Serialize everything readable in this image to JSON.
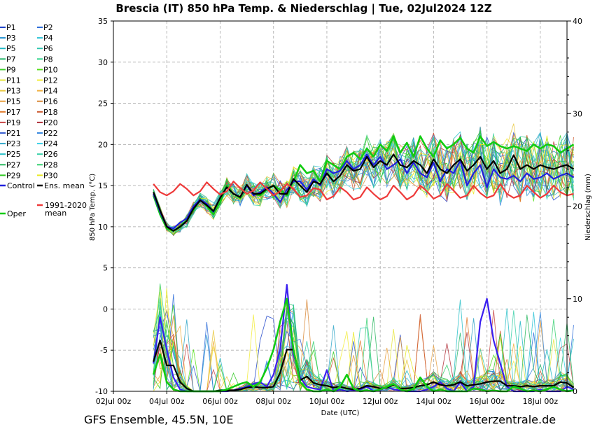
{
  "title": "Brescia  (IT)  850 hPa Temp. & Niederschlag | Tue, 02Jul2024 12Z",
  "footer_left": "GFS Ensemble, 45.5N, 10E",
  "footer_right": "Wetterzentrale.de",
  "chart_data": {
    "type": "line",
    "title": "Brescia  (IT)  850 hPa Temp. & Niederschlag | Tue, 02Jul2024 12Z",
    "xlabel": "Date (UTC)",
    "ylabel": "850 hPa Temp. (°C)",
    "y2label": "Niederschlag (mm)",
    "x_ticks": [
      "02Jul 00z",
      "04Jul 00z",
      "06Jul 00z",
      "08Jul 00z",
      "10Jul 00z",
      "12Jul 00z",
      "14Jul 00z",
      "16Jul 00z",
      "18Jul 00z"
    ],
    "x_range_hours": [
      0,
      408
    ],
    "x_start_hour": 36,
    "step_hours": 6,
    "ylim": [
      -10,
      35
    ],
    "y_ticks": [
      -10,
      -5,
      0,
      5,
      10,
      15,
      20,
      25,
      30,
      35
    ],
    "y2lim": [
      0,
      40
    ],
    "y2_ticks": [
      0,
      10,
      20,
      30,
      40
    ],
    "grid": true,
    "legend_position": "left",
    "legend": [
      {
        "name": "P1",
        "color": "#1f44c9"
      },
      {
        "name": "P2",
        "color": "#2f6fd9"
      },
      {
        "name": "P3",
        "color": "#1f8fcf"
      },
      {
        "name": "P4",
        "color": "#2cc2d6"
      },
      {
        "name": "P5",
        "color": "#20b8c4"
      },
      {
        "name": "P6",
        "color": "#30c7b0"
      },
      {
        "name": "P7",
        "color": "#2ab86f"
      },
      {
        "name": "P8",
        "color": "#33d68f"
      },
      {
        "name": "P9",
        "color": "#3ed02a"
      },
      {
        "name": "P10",
        "color": "#55e01a"
      },
      {
        "name": "P11",
        "color": "#e6e640"
      },
      {
        "name": "P12",
        "color": "#f2ec3a"
      },
      {
        "name": "P13",
        "color": "#e8c840"
      },
      {
        "name": "P14",
        "color": "#f0b040"
      },
      {
        "name": "P15",
        "color": "#e8a040"
      },
      {
        "name": "P16",
        "color": "#d98a3a"
      },
      {
        "name": "P17",
        "color": "#e07a2a"
      },
      {
        "name": "P18",
        "color": "#cc5a30"
      },
      {
        "name": "P19",
        "color": "#c84848"
      },
      {
        "name": "P20",
        "color": "#b0303a"
      },
      {
        "name": "P21",
        "color": "#3a5fd0"
      },
      {
        "name": "P22",
        "color": "#3a8ae0"
      },
      {
        "name": "P23",
        "color": "#30a6c8"
      },
      {
        "name": "P24",
        "color": "#38d0e8"
      },
      {
        "name": "P25",
        "color": "#28c0c8"
      },
      {
        "name": "P26",
        "color": "#38d0a8"
      },
      {
        "name": "P27",
        "color": "#2ab860"
      },
      {
        "name": "P28",
        "color": "#36d070"
      },
      {
        "name": "P29",
        "color": "#2ec820"
      },
      {
        "name": "P30",
        "color": "#e8e820"
      },
      {
        "name": "Control",
        "color": "#2020dd"
      },
      {
        "name": "Ens. mean",
        "color": "#000000"
      },
      {
        "name": "Oper",
        "color": "#11cc11"
      },
      {
        "name": "1991-2020 mean",
        "color": "#ee3a3a"
      }
    ],
    "series": [
      {
        "name": "Oper",
        "color": "#11cc11",
        "axis": "temp",
        "values": [
          13.8,
          11.5,
          9.8,
          9.5,
          10.0,
          10.8,
          12.0,
          13.4,
          12.5,
          11.5,
          13.0,
          15.0,
          14.0,
          13.5,
          15.0,
          14.0,
          13.8,
          14.5,
          15.0,
          14.5,
          13.8,
          15.5,
          17.5,
          16.5,
          16.8,
          15.5,
          18.0,
          17.5,
          17.0,
          18.5,
          19.0,
          18.2,
          19.5,
          18.5,
          20.0,
          19.2,
          21.0,
          19.0,
          20.2,
          18.5,
          21.0,
          19.5,
          18.5,
          20.5,
          19.5,
          20.0,
          20.8,
          19.5,
          19.0,
          21.0,
          19.8,
          20.3,
          19.8,
          19.5,
          19.8,
          19.5,
          19.2,
          20.0,
          19.5,
          20.0,
          19.8,
          19.0,
          19.5,
          20.0
        ]
      },
      {
        "name": "Control",
        "color": "#2020dd",
        "axis": "temp",
        "values": [
          14.0,
          11.8,
          10.0,
          9.8,
          10.5,
          11.0,
          12.5,
          13.3,
          12.8,
          11.8,
          13.5,
          14.8,
          14.0,
          13.6,
          15.0,
          13.8,
          14.2,
          14.8,
          14.0,
          13.0,
          14.5,
          15.5,
          15.5,
          14.5,
          15.8,
          15.0,
          17.0,
          16.5,
          16.8,
          18.0,
          17.0,
          17.5,
          18.8,
          17.5,
          18.5,
          17.0,
          17.5,
          18.2,
          16.5,
          17.8,
          16.5,
          16.0,
          17.8,
          15.5,
          17.0,
          16.5,
          18.0,
          15.0,
          16.5,
          17.5,
          14.8,
          17.0,
          16.0,
          15.8,
          16.2,
          15.5,
          16.5,
          15.8,
          16.0,
          16.5,
          15.8,
          16.2,
          16.5,
          16.0
        ]
      },
      {
        "name": "Ens. mean",
        "color": "#000000",
        "axis": "temp",
        "values": [
          14.2,
          12.0,
          10.0,
          9.5,
          10.0,
          10.7,
          12.2,
          13.2,
          12.6,
          11.9,
          13.5,
          14.8,
          14.0,
          13.6,
          15.1,
          14.0,
          14.0,
          14.6,
          15.0,
          14.0,
          14.0,
          15.8,
          15.0,
          14.2,
          15.5,
          15.2,
          16.5,
          15.5,
          16.2,
          17.5,
          16.8,
          17.0,
          18.5,
          17.2,
          18.0,
          17.5,
          18.8,
          17.5,
          17.2,
          18.0,
          17.5,
          16.5,
          18.2,
          17.0,
          16.5,
          17.5,
          18.2,
          16.8,
          17.5,
          18.5,
          17.0,
          18.0,
          16.5,
          17.0,
          18.7,
          17.0,
          17.5,
          17.0,
          17.5,
          17.2,
          17.0,
          17.3,
          17.5,
          17.0
        ]
      },
      {
        "name": "1991-2020 mean",
        "color": "#ee3a3a",
        "axis": "temp",
        "values": [
          15.2,
          14.2,
          13.8,
          14.3,
          15.2,
          14.6,
          13.8,
          14.3,
          15.4,
          14.6,
          13.9,
          14.3,
          15.5,
          14.7,
          14.0,
          14.4,
          15.4,
          14.6,
          13.8,
          14.3,
          15.2,
          14.6,
          13.6,
          13.8,
          14.7,
          14.5,
          13.3,
          13.7,
          14.8,
          14.2,
          13.3,
          13.6,
          14.8,
          14.0,
          13.3,
          13.7,
          15.0,
          14.2,
          13.3,
          13.8,
          15.0,
          14.3,
          13.4,
          13.8,
          15.2,
          14.4,
          13.5,
          13.8,
          15.0,
          14.1,
          13.5,
          13.8,
          15.2,
          14.0,
          13.5,
          13.8,
          15.0,
          14.2,
          13.5,
          14.0,
          15.0,
          14.2,
          13.8,
          14.0
        ]
      },
      {
        "name": "Control",
        "color": "#3a1ff0",
        "axis": "precip",
        "values": [
          3.0,
          8.0,
          4.5,
          1.5,
          0.2,
          0.0,
          0.0,
          0.0,
          0.0,
          0.0,
          0.0,
          0.0,
          0.1,
          0.3,
          0.5,
          0.8,
          1.0,
          0.5,
          1.8,
          4.5,
          11.5,
          4.0,
          1.5,
          0.5,
          0.3,
          0.2,
          2.3,
          0.0,
          0.2,
          0.0,
          0.1,
          0.2,
          0.5,
          0.0,
          0.1,
          0.5,
          0.2,
          0.1,
          0.0,
          0.0,
          0.0,
          0.2,
          0.5,
          1.0,
          0.3,
          0.0,
          1.0,
          0.0,
          0.5,
          7.5,
          10.0,
          5.5,
          3.0,
          0.5,
          0.0,
          0.0,
          0.0,
          0.0,
          0.2,
          0.0,
          0.0,
          0.0,
          0.5,
          0.2
        ]
      },
      {
        "name": "Ens. mean",
        "color": "#000000",
        "axis": "precip",
        "values": [
          3.2,
          5.5,
          2.8,
          2.8,
          1.0,
          0.3,
          0.0,
          0.0,
          0.0,
          0.0,
          0.1,
          0.1,
          0.1,
          0.2,
          0.4,
          0.5,
          0.4,
          0.4,
          0.5,
          2.0,
          4.5,
          4.5,
          1.2,
          1.6,
          0.9,
          0.7,
          0.6,
          0.4,
          0.5,
          0.3,
          0.2,
          0.3,
          0.6,
          0.5,
          0.3,
          0.4,
          0.7,
          0.3,
          0.3,
          0.4,
          0.6,
          0.7,
          1.0,
          0.7,
          0.6,
          0.7,
          1.0,
          0.6,
          0.7,
          0.8,
          1.0,
          1.1,
          1.1,
          0.6,
          0.6,
          0.5,
          0.6,
          0.5,
          0.6,
          0.6,
          0.6,
          1.0,
          0.9,
          0.4
        ]
      },
      {
        "name": "Oper",
        "color": "#11cc11",
        "axis": "precip",
        "values": [
          1.8,
          4.0,
          1.0,
          0.2,
          0.0,
          0.0,
          0.0,
          0.0,
          0.0,
          0.0,
          0.0,
          0.2,
          0.5,
          0.8,
          1.0,
          0.5,
          1.0,
          2.5,
          4.5,
          7.5,
          10.0,
          4.5,
          1.0,
          0.2,
          0.0,
          0.0,
          0.2,
          0.0,
          0.5,
          1.8,
          0.3,
          0.0,
          0.1,
          0.0,
          0.2,
          0.5,
          0.8,
          0.2,
          0.0,
          0.3,
          1.5,
          0.5,
          0.0,
          0.2,
          0.0,
          0.0,
          0.0,
          0.0,
          0.3,
          0.2,
          0.0,
          0.1,
          0.0,
          0.0,
          0.5,
          0.3,
          0.0,
          0.1,
          0.0,
          0.2,
          0.5,
          0.2,
          0.0,
          0.1
        ]
      }
    ]
  }
}
